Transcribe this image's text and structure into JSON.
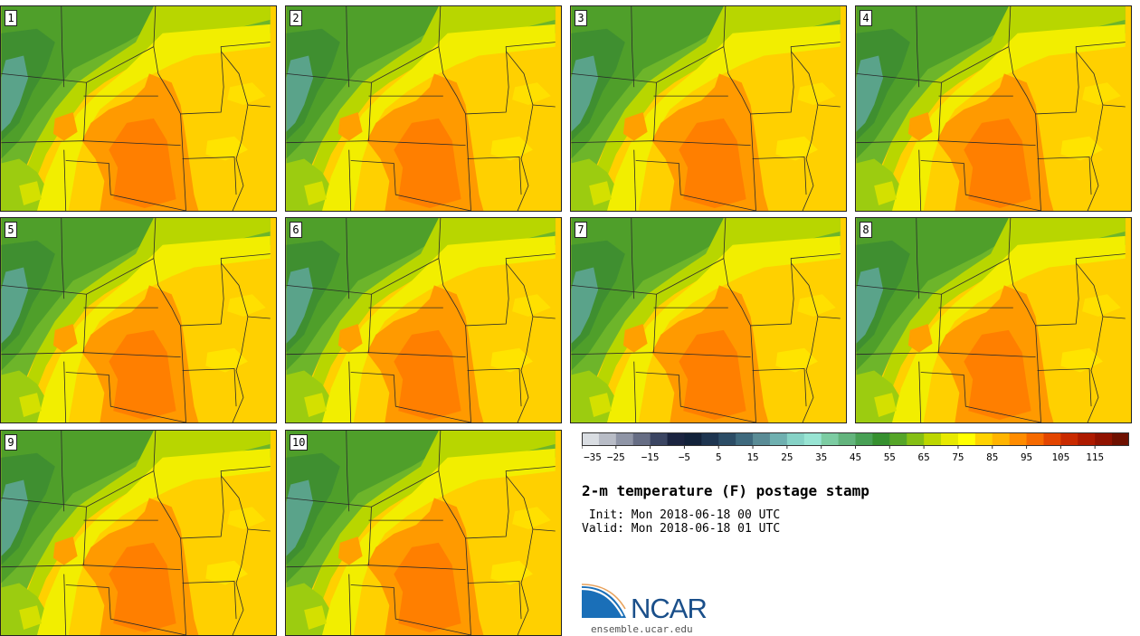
{
  "figure": {
    "title": "2-m temperature (F) postage stamp",
    "init_line": " Init: Mon 2018-06-18 00 UTC",
    "valid_line": "Valid: Mon 2018-06-18 01 UTC"
  },
  "members": [
    "1",
    "2",
    "3",
    "4",
    "5",
    "6",
    "7",
    "8",
    "9",
    "10"
  ],
  "colorbar": {
    "ticks": [
      "−35",
      "−25",
      "−15",
      "−5",
      "5",
      "15",
      "25",
      "35",
      "45",
      "55",
      "65",
      "75",
      "85",
      "95",
      "105",
      "115"
    ],
    "colors": [
      "#d9dde2",
      "#b8bcc6",
      "#8f95a6",
      "#666d84",
      "#3b4562",
      "#1b2440",
      "#12223a",
      "#1e3550",
      "#2c4d66",
      "#3f6a7e",
      "#5a8c96",
      "#6fb0b0",
      "#86d2c6",
      "#98e4d3",
      "#7ccca2",
      "#63b47d",
      "#48a055",
      "#36902f",
      "#55a528",
      "#85bf14",
      "#bcd600",
      "#e7e900",
      "#ffff00",
      "#ffd200",
      "#ffb400",
      "#ff8c00",
      "#f66a00",
      "#e34500",
      "#c92a00",
      "#ad1a00",
      "#901200",
      "#6e1000"
    ]
  },
  "logo": {
    "name": "NCAR",
    "site": "ensemble.ucar.edu"
  }
}
